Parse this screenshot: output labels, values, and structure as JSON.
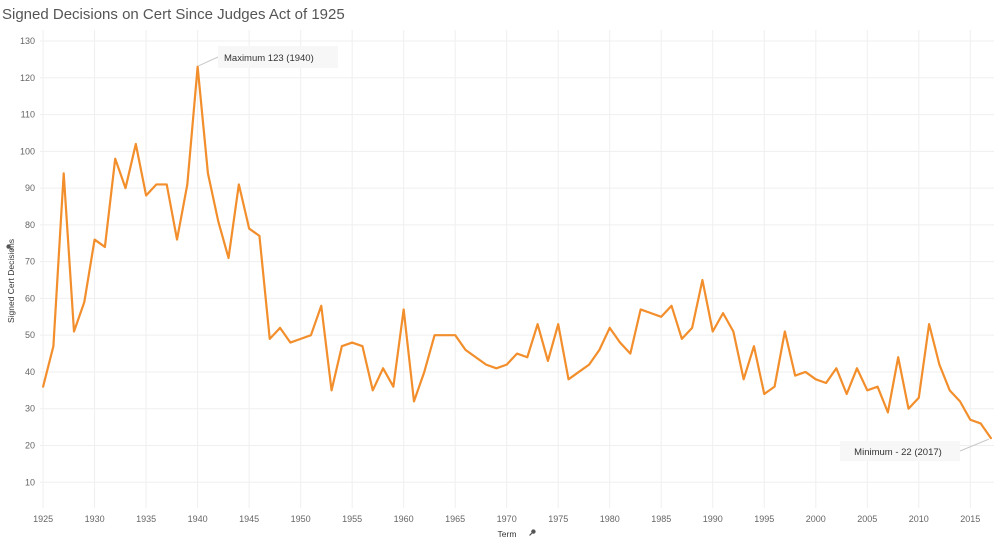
{
  "chart_data": {
    "type": "line",
    "title": "Signed Decisions on Cert Since Judges Act of 1925",
    "xlabel": "Term",
    "ylabel": "Signed Cert Decisions",
    "xlim": [
      1924.7,
      2017.3
    ],
    "ylim": [
      3,
      133
    ],
    "grid": true,
    "x_ticks": [
      1925,
      1930,
      1935,
      1940,
      1945,
      1950,
      1955,
      1960,
      1965,
      1970,
      1975,
      1980,
      1985,
      1990,
      1995,
      2000,
      2005,
      2010,
      2015
    ],
    "y_ticks": [
      10,
      20,
      30,
      40,
      50,
      60,
      70,
      80,
      90,
      100,
      110,
      120,
      130
    ],
    "series": [
      {
        "color": "#f28e2b",
        "x": [
          1925,
          1926,
          1927,
          1928,
          1929,
          1930,
          1931,
          1932,
          1933,
          1934,
          1935,
          1936,
          1937,
          1938,
          1939,
          1940,
          1941,
          1942,
          1943,
          1944,
          1945,
          1946,
          1947,
          1948,
          1949,
          1950,
          1951,
          1952,
          1953,
          1954,
          1955,
          1956,
          1957,
          1958,
          1959,
          1960,
          1961,
          1962,
          1963,
          1964,
          1965,
          1966,
          1967,
          1968,
          1969,
          1970,
          1971,
          1972,
          1973,
          1974,
          1975,
          1976,
          1977,
          1978,
          1979,
          1980,
          1981,
          1982,
          1983,
          1984,
          1985,
          1986,
          1987,
          1988,
          1989,
          1990,
          1991,
          1992,
          1993,
          1994,
          1995,
          1996,
          1997,
          1998,
          1999,
          2000,
          2001,
          2002,
          2003,
          2004,
          2005,
          2006,
          2007,
          2008,
          2009,
          2010,
          2011,
          2012,
          2013,
          2014,
          2015,
          2016,
          2017
        ],
        "values": [
          36,
          47,
          94,
          51,
          59,
          76,
          74,
          98,
          90,
          102,
          88,
          91,
          91,
          76,
          91,
          123,
          94,
          81,
          71,
          91,
          79,
          77,
          49,
          52,
          48,
          49,
          50,
          58,
          35,
          47,
          48,
          47,
          35,
          41,
          36,
          57,
          32,
          40,
          50,
          50,
          50,
          46,
          44,
          42,
          41,
          42,
          45,
          44,
          53,
          43,
          53,
          38,
          40,
          42,
          46,
          52,
          48,
          45,
          57,
          56,
          55,
          58,
          49,
          52,
          65,
          51,
          56,
          51,
          38,
          47,
          34,
          36,
          51,
          39,
          40,
          38,
          37,
          41,
          34,
          41,
          35,
          36,
          29,
          44,
          30,
          33,
          53,
          42,
          35,
          32,
          27,
          26,
          22
        ]
      }
    ],
    "annotations": [
      {
        "text": "Maximum 123 (1940)",
        "x": 1940,
        "y": 123
      },
      {
        "text": "Minimum - 22 (2017)",
        "x": 2017,
        "y": 22
      }
    ]
  }
}
